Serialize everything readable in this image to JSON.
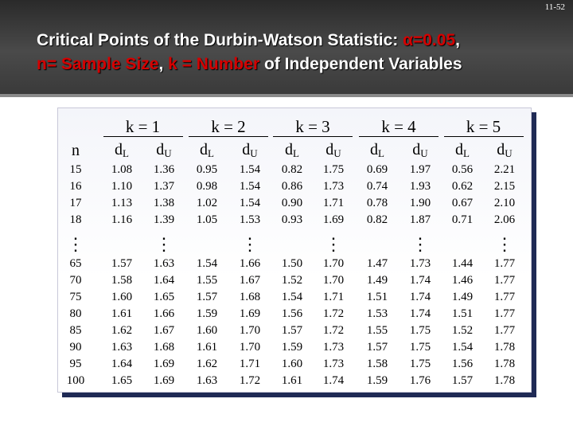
{
  "page_number": "11-52",
  "title": {
    "l1_a": "Critical Points of the Durbin-Watson Statistic: ",
    "l1_alpha": "α=0.05",
    "l1_comma": ",",
    "l2_a": "n= Sample Size",
    "l2_b": ", ",
    "l2_c": "k = Number",
    "l2_d": " of Independent Variables"
  },
  "table": {
    "n_header": "n",
    "k_headers": [
      "k = 1",
      "k = 2",
      "k = 3",
      "k = 4",
      "k = 5"
    ],
    "d_letter": "d",
    "sub_L": "L",
    "sub_U": "U",
    "ellipsis": "⋮",
    "rows_top": [
      [
        "15",
        "1.08",
        "1.36",
        "0.95",
        "1.54",
        "0.82",
        "1.75",
        "0.69",
        "1.97",
        "0.56",
        "2.21"
      ],
      [
        "16",
        "1.10",
        "1.37",
        "0.98",
        "1.54",
        "0.86",
        "1.73",
        "0.74",
        "1.93",
        "0.62",
        "2.15"
      ],
      [
        "17",
        "1.13",
        "1.38",
        "1.02",
        "1.54",
        "0.90",
        "1.71",
        "0.78",
        "1.90",
        "0.67",
        "2.10"
      ],
      [
        "18",
        "1.16",
        "1.39",
        "1.05",
        "1.53",
        "0.93",
        "1.69",
        "0.82",
        "1.87",
        "0.71",
        "2.06"
      ]
    ],
    "rows_bottom": [
      [
        "65",
        "1.57",
        "1.63",
        "1.54",
        "1.66",
        "1.50",
        "1.70",
        "1.47",
        "1.73",
        "1.44",
        "1.77"
      ],
      [
        "70",
        "1.58",
        "1.64",
        "1.55",
        "1.67",
        "1.52",
        "1.70",
        "1.49",
        "1.74",
        "1.46",
        "1.77"
      ],
      [
        "75",
        "1.60",
        "1.65",
        "1.57",
        "1.68",
        "1.54",
        "1.71",
        "1.51",
        "1.74",
        "1.49",
        "1.77"
      ],
      [
        "80",
        "1.61",
        "1.66",
        "1.59",
        "1.69",
        "1.56",
        "1.72",
        "1.53",
        "1.74",
        "1.51",
        "1.77"
      ],
      [
        "85",
        "1.62",
        "1.67",
        "1.60",
        "1.70",
        "1.57",
        "1.72",
        "1.55",
        "1.75",
        "1.52",
        "1.77"
      ],
      [
        "90",
        "1.63",
        "1.68",
        "1.61",
        "1.70",
        "1.59",
        "1.73",
        "1.57",
        "1.75",
        "1.54",
        "1.78"
      ],
      [
        "95",
        "1.64",
        "1.69",
        "1.62",
        "1.71",
        "1.60",
        "1.73",
        "1.58",
        "1.75",
        "1.56",
        "1.78"
      ],
      [
        "100",
        "1.65",
        "1.69",
        "1.63",
        "1.72",
        "1.61",
        "1.74",
        "1.59",
        "1.76",
        "1.57",
        "1.78"
      ]
    ]
  }
}
